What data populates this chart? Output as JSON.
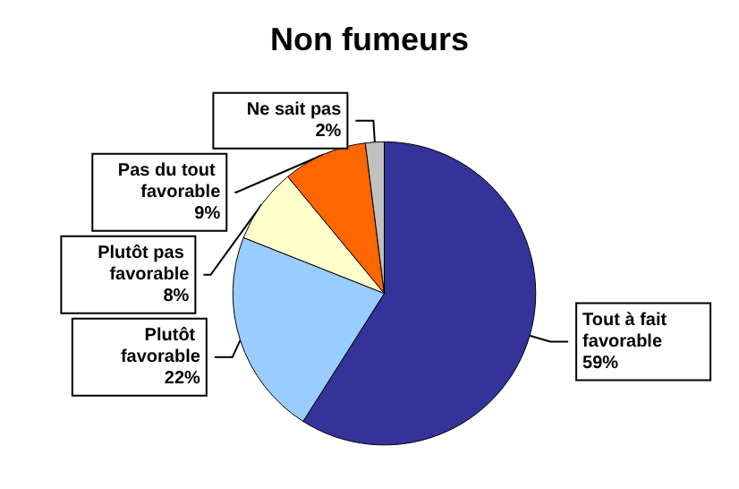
{
  "chart_data": {
    "type": "pie",
    "title": "Non fumeurs",
    "categories": [
      "Tout à fait favorable",
      "Plutôt favorable",
      "Plutôt pas favorable",
      "Pas du tout favorable",
      "Ne sait pas"
    ],
    "values": [
      59,
      22,
      8,
      9,
      2
    ],
    "colors": [
      "#333399",
      "#99ccff",
      "#ffffcc",
      "#ff6600",
      "#c0c0c0"
    ],
    "value_labels": [
      "59%",
      "22%",
      "8%",
      "9%",
      "2%"
    ]
  }
}
